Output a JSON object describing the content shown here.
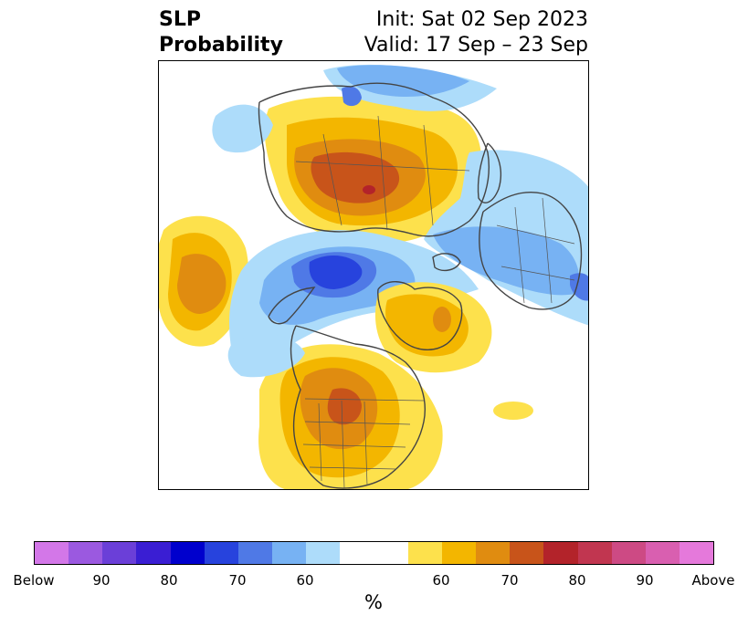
{
  "header": {
    "title_line1": "SLP",
    "title_line2": "Probability",
    "init": "Init: Sat 02 Sep 2023",
    "valid": "Valid: 17 Sep – 23 Sep"
  },
  "colorbar": {
    "colors": [
      "#d377e8",
      "#9b59e0",
      "#6b3fd8",
      "#3a1ed3",
      "#0000cd",
      "#2743dd",
      "#4f79e6",
      "#77b2f3",
      "#addcfa",
      "#ffffff",
      "#ffffff",
      "#fde14c",
      "#f3b600",
      "#e08c10",
      "#c8541a",
      "#b3232a",
      "#c13650",
      "#cd4a84",
      "#d95fb0",
      "#e579db"
    ],
    "tick_labels": [
      "Below",
      "90",
      "80",
      "70",
      "60",
      "60",
      "70",
      "80",
      "90",
      "Above"
    ],
    "unit_label": "%"
  },
  "map": {
    "projection": "north-polar-stereographic",
    "palette": {
      "blue_light": "#addcfa",
      "blue_mid": "#77b2f3",
      "blue_deep": "#4f79e6",
      "blue_core": "#2743dd",
      "yellow": "#fde14c",
      "gold": "#f3b600",
      "orange": "#e08c10",
      "rust": "#c8541a",
      "red": "#b3232a",
      "border": "#444444"
    }
  }
}
